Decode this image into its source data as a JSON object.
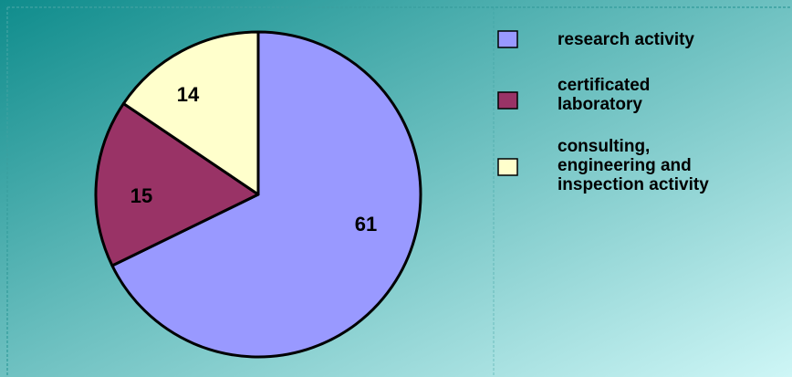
{
  "chart_data": {
    "type": "pie",
    "title": "",
    "categories": [
      "research activity",
      "certificated laboratory",
      "consulting, engineering and inspection activity"
    ],
    "values": [
      61,
      15,
      14
    ],
    "data_labels": [
      "61",
      "15",
      "14"
    ],
    "legend": [
      {
        "lines": [
          "research activity"
        ],
        "color": "#9999ff"
      },
      {
        "lines": [
          "certificated",
          "laboratory"
        ],
        "color": "#993366"
      },
      {
        "lines": [
          "consulting,",
          "engineering and",
          "inspection activity"
        ],
        "color": "#ffffcc"
      }
    ],
    "legend_position": "right",
    "start_angle_deg": 0,
    "direction": "clockwise",
    "colors": [
      "#9999ff",
      "#993366",
      "#ffffcc"
    ],
    "background_colors": [
      "#0f8c8c",
      "#cef6f6"
    ],
    "frame_color": "#3aa0a0"
  }
}
